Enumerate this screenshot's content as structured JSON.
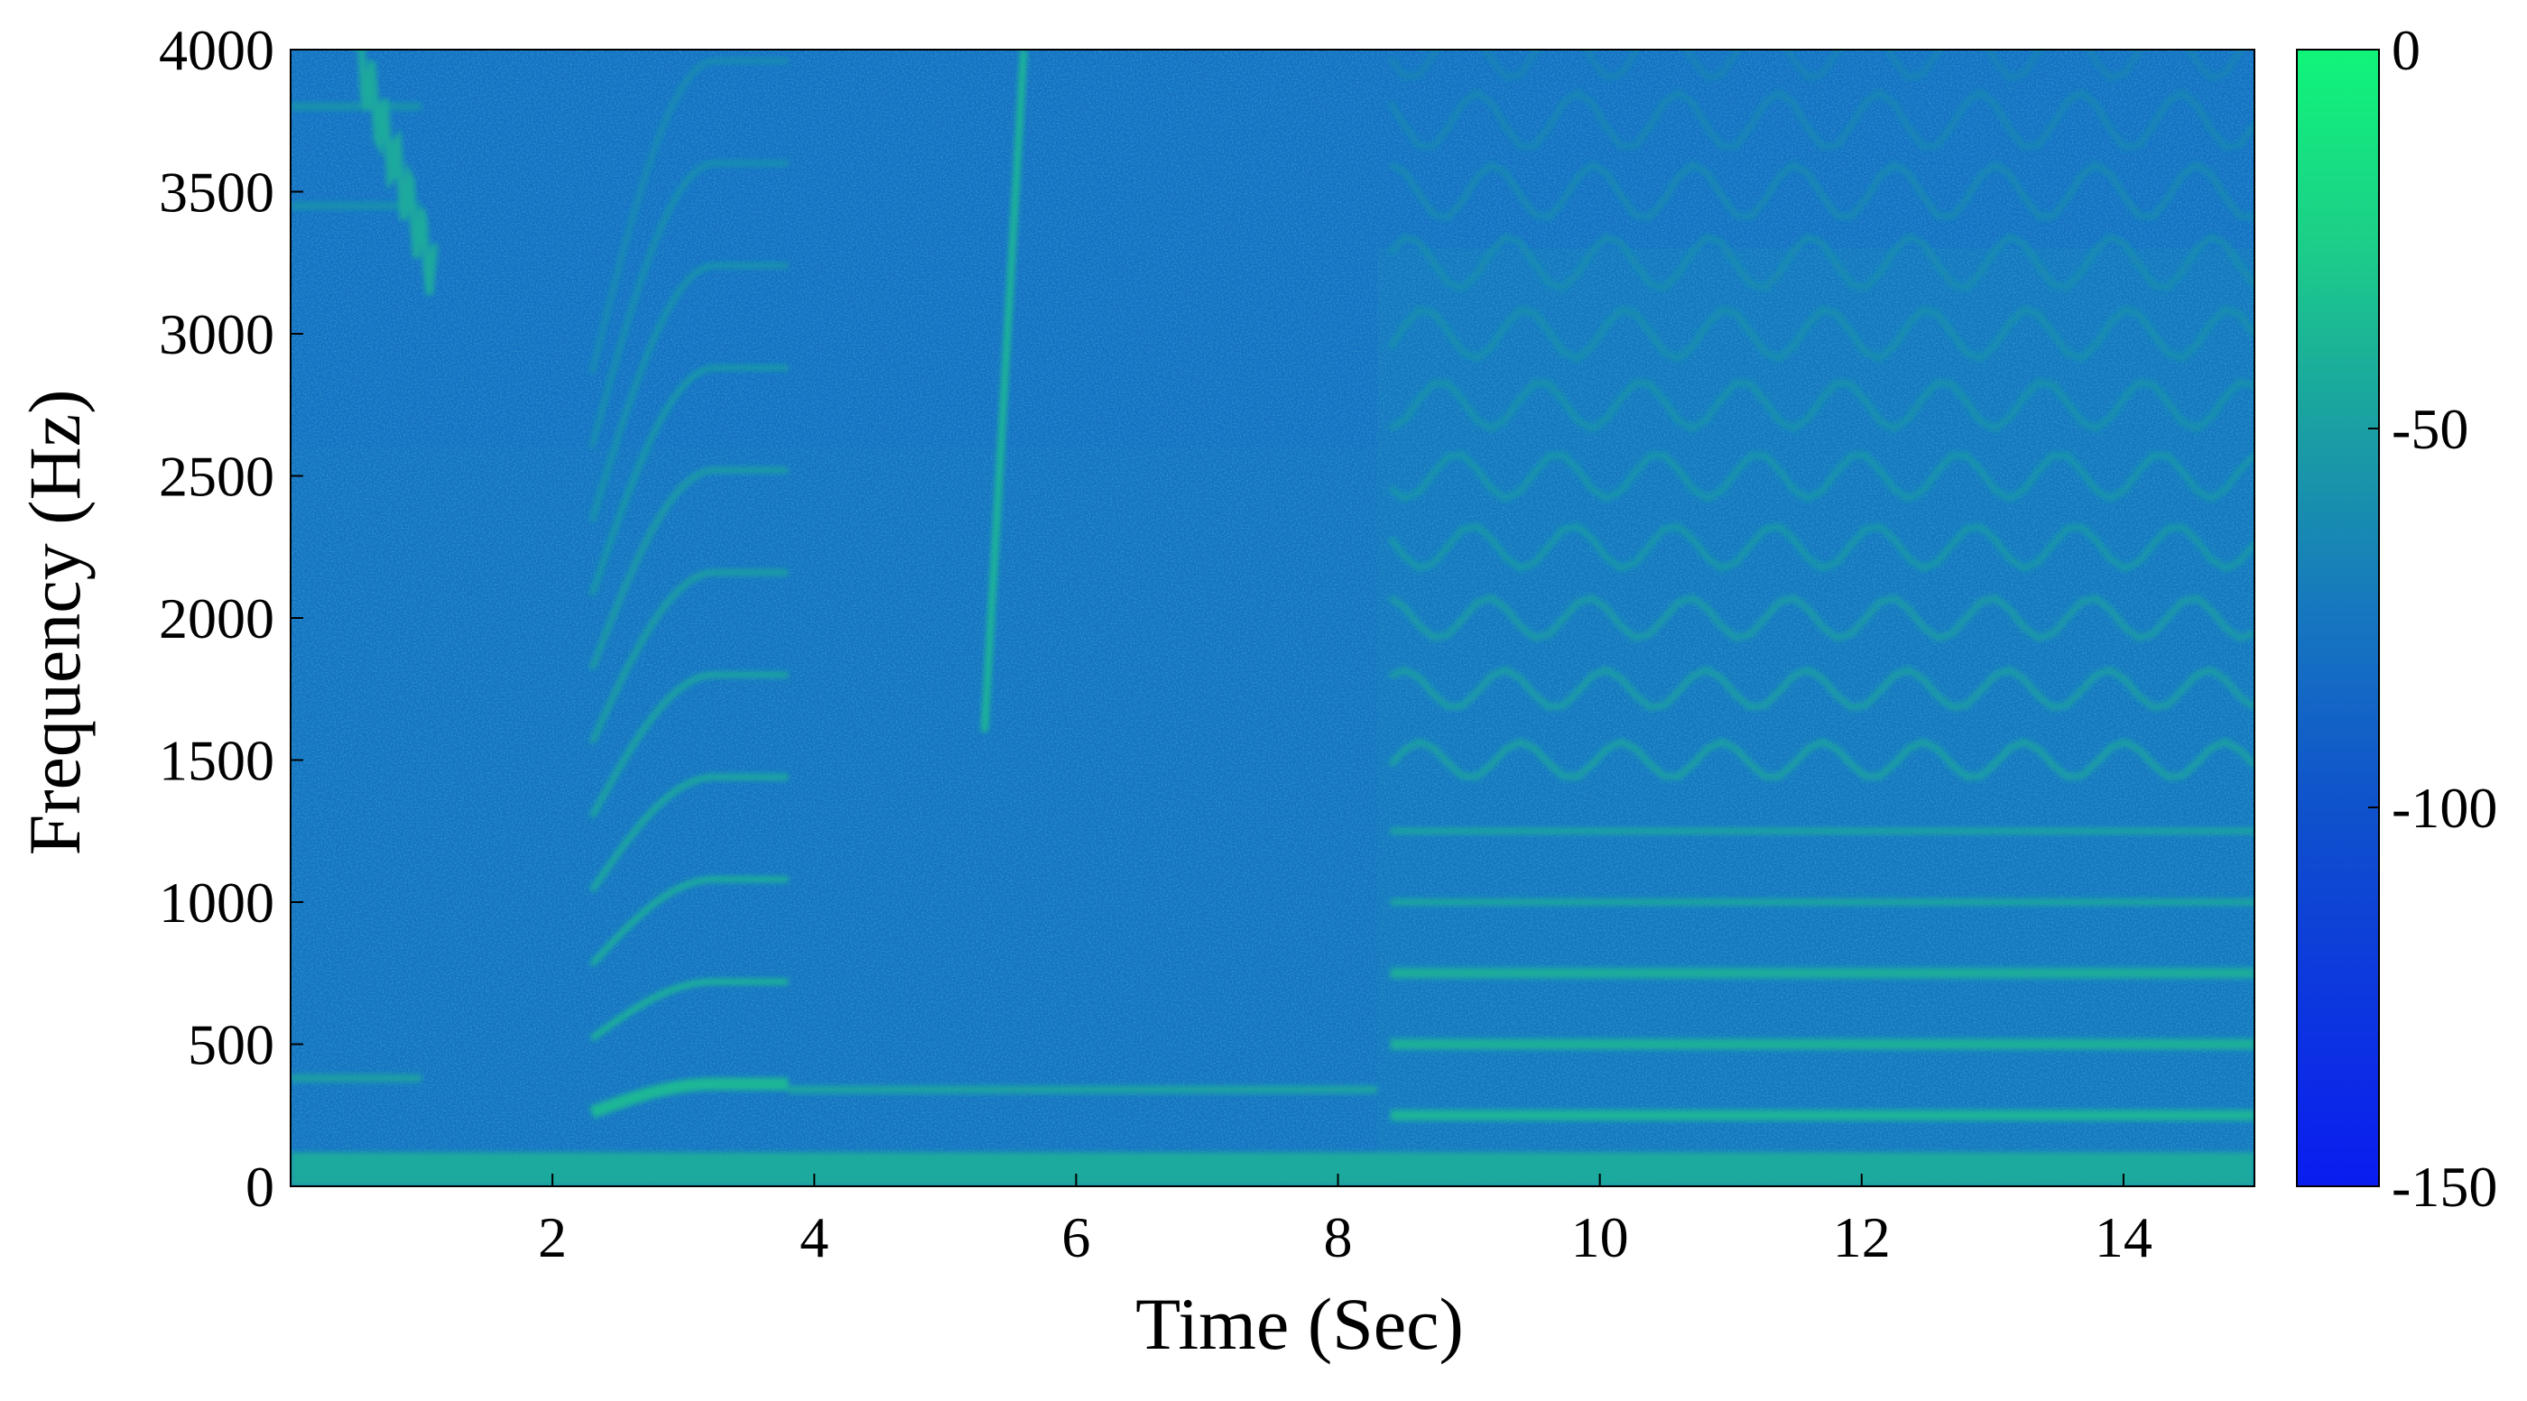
{
  "chart_data": {
    "type": "heatmap",
    "subtype": "spectrogram",
    "title": "",
    "xlabel": "Time (Sec)",
    "ylabel": "Frequency (Hz)",
    "xlim": [
      0,
      15
    ],
    "ylim": [
      0,
      4000
    ],
    "x_ticks": [
      2,
      4,
      6,
      8,
      10,
      12,
      14
    ],
    "y_ticks": [
      0,
      500,
      1000,
      1500,
      2000,
      2500,
      3000,
      3500,
      4000
    ],
    "grid": false,
    "colorbar": {
      "range": [
        -150,
        0
      ],
      "ticks": [
        0,
        -50,
        -100,
        -150
      ],
      "colormap": [
        {
          "value": -150,
          "color": "#0a1cf0"
        },
        {
          "value": -100,
          "color": "#0f52cc"
        },
        {
          "value": -75,
          "color": "#1676c0"
        },
        {
          "value": -50,
          "color": "#1a9fa3"
        },
        {
          "value": -25,
          "color": "#1ccf88"
        },
        {
          "value": 0,
          "color": "#10f57a"
        }
      ]
    },
    "background_level_db": -80,
    "low_frequency_band": {
      "freq_range": [
        0,
        120
      ],
      "time_range": [
        0,
        15
      ],
      "level_db": -45
    },
    "features": [
      {
        "kind": "tone",
        "time_range": [
          0,
          1.0
        ],
        "freq": 380,
        "level_db": -50
      },
      {
        "kind": "tone",
        "time_range": [
          0,
          1.0
        ],
        "freq": 3450,
        "level_db": -60
      },
      {
        "kind": "tone",
        "time_range": [
          0,
          1.0
        ],
        "freq": 3800,
        "level_db": -58
      },
      {
        "kind": "chirp",
        "time_range": [
          0.5,
          1.1
        ],
        "freq_range": [
          3200,
          4000
        ],
        "level_db": -45
      },
      {
        "kind": "harmonic_arc",
        "time_range": [
          2.3,
          3.8
        ],
        "fundamental_start": 260,
        "fundamental_peak": 360,
        "harmonics": 11,
        "level_db": -35
      },
      {
        "kind": "tone",
        "time_range": [
          3.8,
          8.3
        ],
        "freq": 340,
        "level_db": -48
      },
      {
        "kind": "sweep",
        "time_range": [
          5.3,
          5.6
        ],
        "freq_range": [
          1600,
          4000
        ],
        "level_db": -38
      },
      {
        "kind": "harmonic_stack",
        "time_range": [
          8.4,
          15
        ],
        "fundamental": 250,
        "harmonics": 16,
        "level_db": -38
      }
    ]
  }
}
